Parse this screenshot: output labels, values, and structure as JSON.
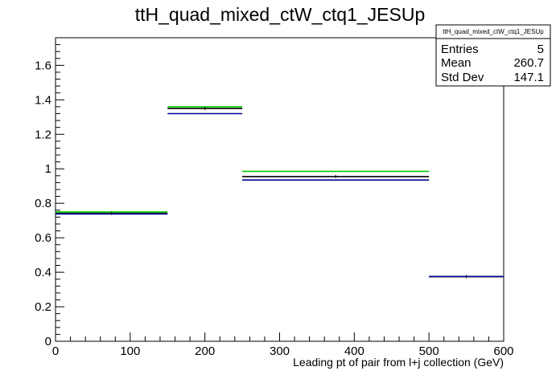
{
  "chart_data": {
    "type": "histogram-step",
    "title": "ttH_quad_mixed_ctW_ctq1_JESUp",
    "xlabel": "Leading pt of pair from l+j collection (GeV)",
    "ylabel": "",
    "xlim": [
      0,
      600
    ],
    "ylim": [
      0,
      1.76
    ],
    "x_ticks": [
      0,
      100,
      200,
      300,
      400,
      500,
      600
    ],
    "x_tick_labels": [
      "0",
      "100",
      "200",
      "300",
      "400",
      "500",
      "600"
    ],
    "y_ticks": [
      0,
      0.2,
      0.4,
      0.6,
      0.8,
      1,
      1.2,
      1.4,
      1.6
    ],
    "y_tick_labels": [
      "0",
      "0.2",
      "0.4",
      "0.6",
      "0.8",
      "1",
      "1.2",
      "1.4",
      "1.6"
    ],
    "bin_edges": [
      0,
      150,
      250,
      500,
      600
    ],
    "series": [
      {
        "color": "#00cc00",
        "values": [
          0.75,
          1.36,
          0.985,
          0.375
        ]
      },
      {
        "color": "#000000",
        "values": [
          0.742,
          1.35,
          0.955,
          0.375
        ]
      },
      {
        "color": "#000099",
        "values": [
          0.738,
          1.32,
          0.935,
          0.375
        ]
      }
    ],
    "stats": {
      "title": "ttH_quad_mixed_ctW_ctq1_JESUp",
      "rows": [
        {
          "label": "Entries",
          "value": "5"
        },
        {
          "label": "Mean",
          "value": "260.7"
        },
        {
          "label": "Std Dev",
          "value": "147.1"
        }
      ]
    }
  }
}
